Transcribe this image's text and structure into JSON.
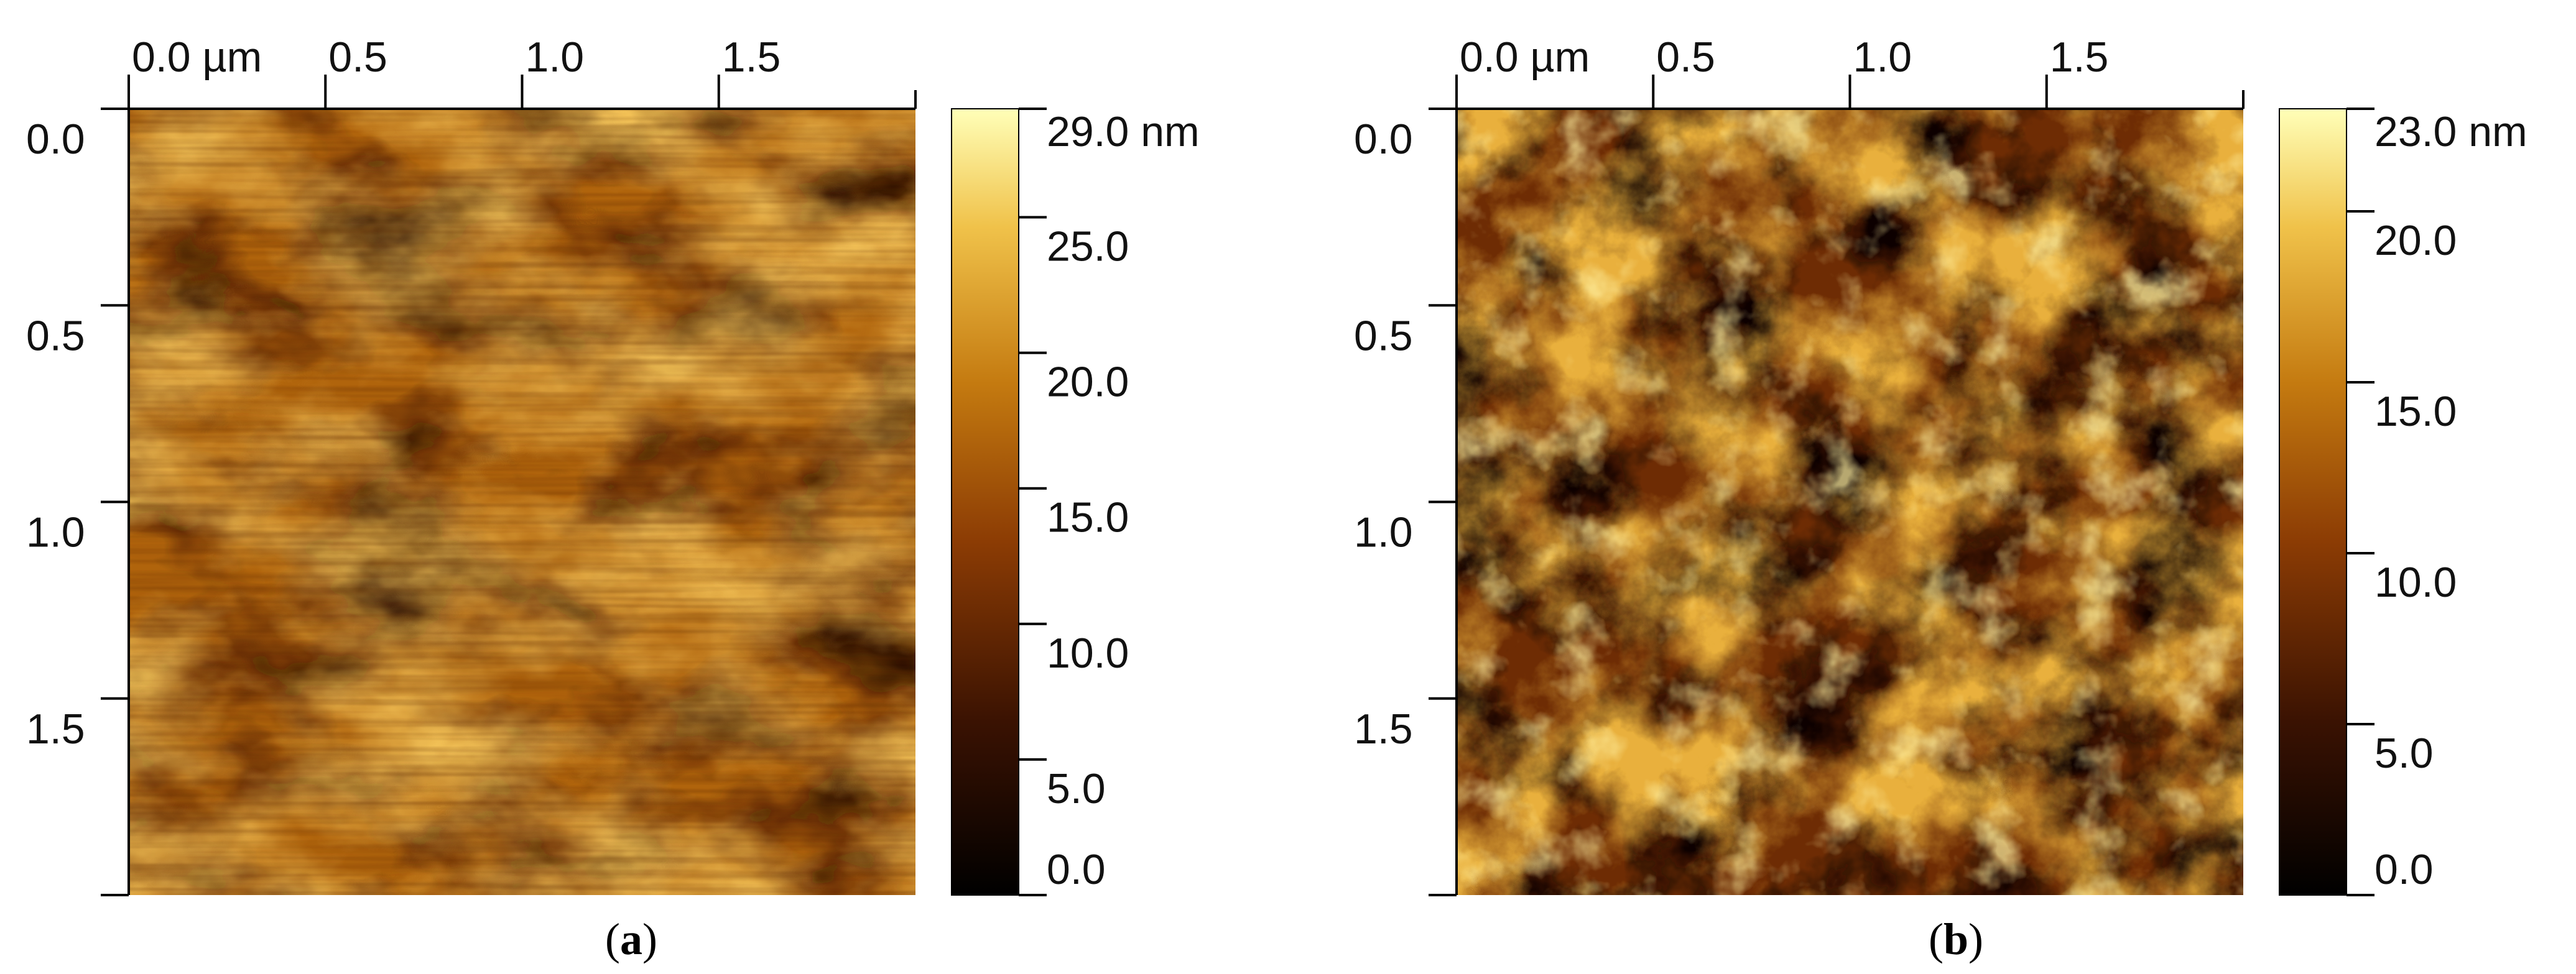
{
  "panels": [
    {
      "id": "a",
      "caption_open": "(",
      "caption_letter": "a",
      "caption_close": ")",
      "x_ticks": [
        "0.0 µm",
        "0.5",
        "1.0",
        "1.5"
      ],
      "y_ticks": [
        "0.0",
        "0.5",
        "1.0",
        "1.5"
      ],
      "colorbar_ticks": [
        "29.0 nm",
        "25.0",
        "20.0",
        "15.0",
        "10.0",
        "5.0",
        "0.0"
      ],
      "colorbar_values": [
        29,
        25,
        20,
        15,
        10,
        5,
        0
      ],
      "colorbar_max": 29,
      "colors": {
        "low": "#000000",
        "mid": "#b5650a",
        "high": "#ffffb0"
      }
    },
    {
      "id": "b",
      "caption_open": "(",
      "caption_letter": "b",
      "caption_close": ")",
      "x_ticks": [
        "0.0 µm",
        "0.5",
        "1.0",
        "1.5"
      ],
      "y_ticks": [
        "0.0",
        "0.5",
        "1.0",
        "1.5"
      ],
      "colorbar_ticks": [
        "23.0 nm",
        "20.0",
        "15.0",
        "10.0",
        "5.0",
        "0.0"
      ],
      "colorbar_values": [
        23,
        20,
        15,
        10,
        5,
        0
      ],
      "colorbar_max": 23,
      "colors": {
        "low": "#000000",
        "mid": "#b5650a",
        "high": "#ffffb0"
      }
    }
  ]
}
